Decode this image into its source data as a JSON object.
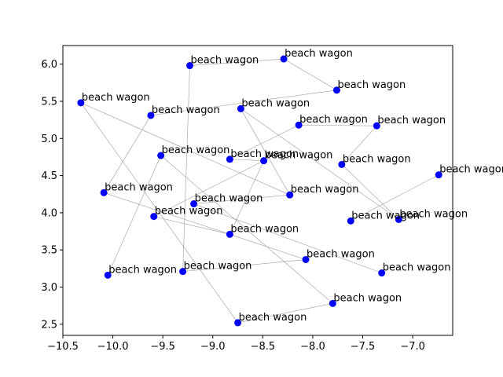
{
  "chart_data": {
    "type": "scatter",
    "title": "",
    "xlabel": "",
    "ylabel": "",
    "xlim": [
      -10.5,
      -6.6
    ],
    "ylim": [
      2.35,
      6.25
    ],
    "grid": false,
    "xticks": [
      -10.5,
      -10.0,
      -9.5,
      -9.0,
      -8.5,
      -8.0,
      -7.5,
      -7.0
    ],
    "xtick_labels": [
      "−10.5",
      "−10.0",
      "−9.5",
      "−9.0",
      "−8.5",
      "−8.0",
      "−7.5",
      "−7.0"
    ],
    "yticks": [
      2.5,
      3.0,
      3.5,
      4.0,
      4.5,
      5.0,
      5.5,
      6.0
    ],
    "ytick_labels": [
      "2.5",
      "3.0",
      "3.5",
      "4.0",
      "4.5",
      "5.0",
      "5.5",
      "6.0"
    ],
    "point_color": "#0000ff",
    "edge_color": "#9e9e9e",
    "points": [
      {
        "x": -9.23,
        "y": 5.98,
        "label": "beach wagon"
      },
      {
        "x": -8.29,
        "y": 6.07,
        "label": "beach wagon"
      },
      {
        "x": -7.76,
        "y": 5.65,
        "label": "beach wagon"
      },
      {
        "x": -10.32,
        "y": 5.48,
        "label": "beach wagon"
      },
      {
        "x": -9.62,
        "y": 5.31,
        "label": "beach wagon"
      },
      {
        "x": -8.72,
        "y": 5.4,
        "label": "beach wagon"
      },
      {
        "x": -8.14,
        "y": 5.18,
        "label": "beach wagon"
      },
      {
        "x": -7.36,
        "y": 5.17,
        "label": "beach wagon"
      },
      {
        "x": -9.52,
        "y": 4.77,
        "label": "beach wagon"
      },
      {
        "x": -8.83,
        "y": 4.72,
        "label": "beach wagon"
      },
      {
        "x": -8.49,
        "y": 4.7,
        "label": "beach wagon"
      },
      {
        "x": -7.71,
        "y": 4.65,
        "label": "beach wagon"
      },
      {
        "x": -6.74,
        "y": 4.51,
        "label": "beach wagon"
      },
      {
        "x": -10.09,
        "y": 4.27,
        "label": "beach wagon"
      },
      {
        "x": -8.23,
        "y": 4.24,
        "label": "beach wagon"
      },
      {
        "x": -9.19,
        "y": 4.12,
        "label": "beach wagon"
      },
      {
        "x": -9.59,
        "y": 3.95,
        "label": "beach wagon"
      },
      {
        "x": -7.62,
        "y": 3.89,
        "label": "beach wagon"
      },
      {
        "x": -7.14,
        "y": 3.91,
        "label": "beach wagon"
      },
      {
        "x": -8.83,
        "y": 3.71,
        "label": "beach wagon"
      },
      {
        "x": -8.07,
        "y": 3.37,
        "label": "beach wagon"
      },
      {
        "x": -9.3,
        "y": 3.21,
        "label": "beach wagon"
      },
      {
        "x": -7.31,
        "y": 3.19,
        "label": "beach wagon"
      },
      {
        "x": -10.05,
        "y": 3.16,
        "label": "beach wagon"
      },
      {
        "x": -7.8,
        "y": 2.78,
        "label": "beach wagon"
      },
      {
        "x": -8.75,
        "y": 2.52,
        "label": "beach wagon"
      }
    ],
    "edges": [
      [
        0,
        1
      ],
      [
        0,
        21
      ],
      [
        1,
        2
      ],
      [
        2,
        4
      ],
      [
        3,
        14
      ],
      [
        3,
        25
      ],
      [
        4,
        13
      ],
      [
        5,
        14
      ],
      [
        5,
        18
      ],
      [
        6,
        7
      ],
      [
        6,
        9
      ],
      [
        7,
        11
      ],
      [
        8,
        23
      ],
      [
        8,
        24
      ],
      [
        9,
        10
      ],
      [
        10,
        16
      ],
      [
        10,
        19
      ],
      [
        11,
        18
      ],
      [
        12,
        17
      ],
      [
        13,
        19
      ],
      [
        14,
        15
      ],
      [
        15,
        22
      ],
      [
        16,
        19
      ],
      [
        19,
        20
      ],
      [
        20,
        21
      ],
      [
        24,
        25
      ]
    ]
  }
}
